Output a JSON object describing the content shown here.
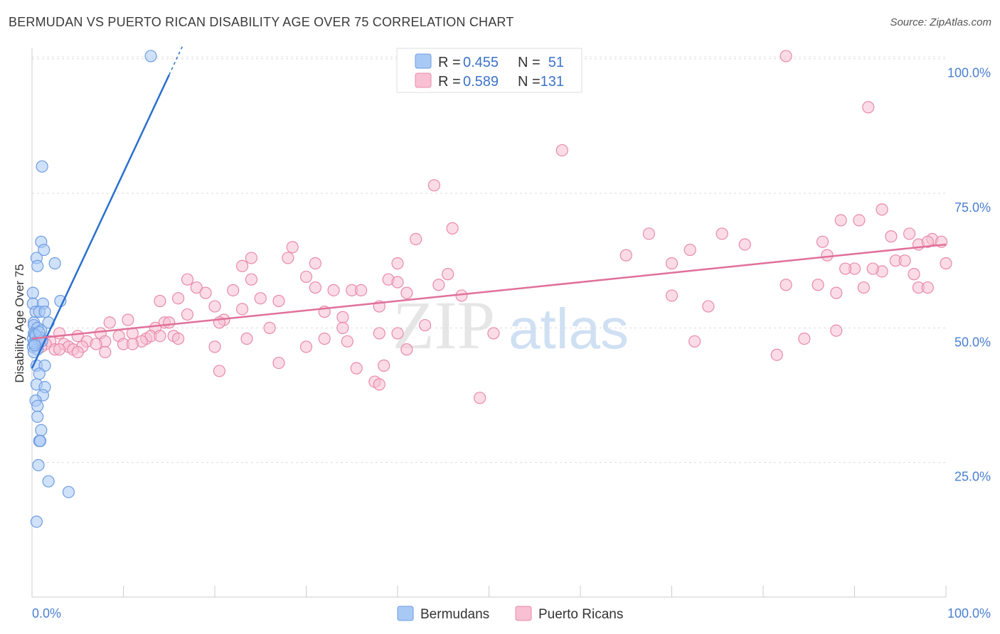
{
  "title": "BERMUDAN VS PUERTO RICAN DISABILITY AGE OVER 75 CORRELATION CHART",
  "source": "Source: ZipAtlas.com",
  "watermark": {
    "zip": "ZIP",
    "atlas": "atlas"
  },
  "legend": {
    "rows": [
      {
        "r_label": "R =",
        "r_value": "0.455",
        "n_label": "N =",
        "n_value": "51",
        "color": "#a9c9f5",
        "stroke": "#6d9de0"
      },
      {
        "r_label": "R =",
        "r_value": "0.589",
        "n_label": "N =",
        "n_value": "131",
        "color": "#f8c0d2",
        "stroke": "#e88aa8"
      }
    ]
  },
  "chart_data": {
    "type": "scatter",
    "title": "BERMUDAN VS PUERTO RICAN DISABILITY AGE OVER 75 CORRELATION CHART",
    "xlabel": "",
    "ylabel": "Disability Age Over 75",
    "xlim": [
      0,
      100
    ],
    "ylim": [
      0,
      103
    ],
    "x_tick_labels": [
      "0.0%",
      "100.0%"
    ],
    "y_ticks": [
      25,
      50,
      75,
      100
    ],
    "y_tick_labels": [
      "25.0%",
      "50.0%",
      "75.0%",
      "100.0%"
    ],
    "grid": true,
    "series": [
      {
        "name": "Bermudans",
        "color": "#a9c9f5",
        "stroke": "#6d9de0",
        "line_color": "#2a6fce",
        "trend": {
          "x0": 0,
          "y0": 42.5,
          "x1": 15.0,
          "y1": 97.0,
          "dash_to_x": 16.5,
          "dash_to_y": 102.5
        },
        "points": [
          [
            13,
            100.5
          ],
          [
            1.1,
            80
          ],
          [
            1.0,
            66
          ],
          [
            1.3,
            64.5
          ],
          [
            0.5,
            63
          ],
          [
            0.6,
            61.5
          ],
          [
            2.5,
            62
          ],
          [
            0.1,
            56.5
          ],
          [
            0.1,
            54.5
          ],
          [
            1.2,
            54.5
          ],
          [
            3.1,
            55
          ],
          [
            0.4,
            53
          ],
          [
            0.8,
            53
          ],
          [
            1.4,
            53
          ],
          [
            0.2,
            51
          ],
          [
            1.8,
            51
          ],
          [
            0.2,
            50.5
          ],
          [
            0.6,
            50
          ],
          [
            1.0,
            49.5
          ],
          [
            0.2,
            49
          ],
          [
            0.5,
            48.5
          ],
          [
            0.1,
            48
          ],
          [
            0.4,
            47.5
          ],
          [
            0.3,
            47
          ],
          [
            0.1,
            46.5
          ],
          [
            0.6,
            46
          ],
          [
            0.2,
            45.5
          ],
          [
            0.5,
            43
          ],
          [
            1.4,
            43
          ],
          [
            0.8,
            41.5
          ],
          [
            0.5,
            39.5
          ],
          [
            1.4,
            39
          ],
          [
            1.2,
            37.5
          ],
          [
            0.4,
            36.5
          ],
          [
            0.6,
            35.5
          ],
          [
            0.6,
            33.5
          ],
          [
            1.0,
            31
          ],
          [
            0.8,
            29
          ],
          [
            0.9,
            29
          ],
          [
            0.7,
            24.5
          ],
          [
            1.8,
            21.5
          ],
          [
            4.0,
            19.5
          ],
          [
            0.5,
            14
          ],
          [
            0.3,
            48.8
          ],
          [
            0.7,
            47.8
          ],
          [
            0.9,
            48.2
          ],
          [
            0.2,
            47.2
          ],
          [
            0.4,
            48.6
          ],
          [
            1.1,
            47.6
          ],
          [
            0.3,
            46.8
          ],
          [
            0.8,
            49.2
          ]
        ]
      },
      {
        "name": "Puerto Ricans",
        "color": "#f8c0d2",
        "stroke": "#e88aa8",
        "line_color": "#e0709a",
        "trend": {
          "x0": 0,
          "y0": 48.0,
          "x1": 100,
          "y1": 65.5
        },
        "points": [
          [
            82.5,
            100.5
          ],
          [
            91.5,
            91
          ],
          [
            58,
            83
          ],
          [
            44,
            76.5
          ],
          [
            93,
            72
          ],
          [
            88.5,
            70
          ],
          [
            90.5,
            70
          ],
          [
            46,
            68.5
          ],
          [
            67.5,
            67.5
          ],
          [
            75.5,
            67.5
          ],
          [
            94,
            67
          ],
          [
            96,
            67.5
          ],
          [
            98.5,
            66.5
          ],
          [
            99.5,
            66
          ],
          [
            42,
            66.5
          ],
          [
            28.5,
            65
          ],
          [
            72,
            64.5
          ],
          [
            78,
            65.5
          ],
          [
            86.5,
            66
          ],
          [
            97,
            65.5
          ],
          [
            98,
            66
          ],
          [
            65,
            63.5
          ],
          [
            87,
            63.5
          ],
          [
            94.5,
            62.5
          ],
          [
            95.5,
            62.5
          ],
          [
            70,
            62
          ],
          [
            28,
            63
          ],
          [
            24,
            63
          ],
          [
            40,
            62
          ],
          [
            31,
            62
          ],
          [
            23,
            61.5
          ],
          [
            90,
            61
          ],
          [
            93,
            60.5
          ],
          [
            92,
            61
          ],
          [
            89,
            61
          ],
          [
            100,
            62
          ],
          [
            96.5,
            60
          ],
          [
            45.5,
            60
          ],
          [
            30,
            59.5
          ],
          [
            24,
            59
          ],
          [
            17,
            59
          ],
          [
            39,
            59
          ],
          [
            40,
            58.5
          ],
          [
            44.5,
            58
          ],
          [
            18,
            57.5
          ],
          [
            82.5,
            58
          ],
          [
            86,
            58
          ],
          [
            91,
            57.5
          ],
          [
            97,
            57.5
          ],
          [
            98,
            57.5
          ],
          [
            22,
            57
          ],
          [
            33,
            57
          ],
          [
            35,
            57
          ],
          [
            36,
            57
          ],
          [
            31,
            57.5
          ],
          [
            41,
            56.5
          ],
          [
            19,
            56.5
          ],
          [
            16,
            55.5
          ],
          [
            27,
            55
          ],
          [
            47,
            56
          ],
          [
            70,
            56
          ],
          [
            88,
            56.5
          ],
          [
            14,
            55
          ],
          [
            25,
            55.5
          ],
          [
            20,
            54
          ],
          [
            38,
            54
          ],
          [
            74,
            54
          ],
          [
            23,
            53.5
          ],
          [
            32,
            53
          ],
          [
            34,
            52
          ],
          [
            17,
            52.5
          ],
          [
            21,
            51.5
          ],
          [
            20.5,
            51
          ],
          [
            10.5,
            51.5
          ],
          [
            14.5,
            51
          ],
          [
            8.5,
            51
          ],
          [
            15,
            51
          ],
          [
            13.5,
            50
          ],
          [
            26,
            50
          ],
          [
            43,
            50.5
          ],
          [
            34,
            50
          ],
          [
            88,
            49.5
          ],
          [
            3,
            49
          ],
          [
            7.5,
            49
          ],
          [
            11,
            49
          ],
          [
            38,
            49
          ],
          [
            40,
            49
          ],
          [
            50.5,
            49
          ],
          [
            5,
            48.5
          ],
          [
            9.5,
            48.5
          ],
          [
            12.5,
            48
          ],
          [
            13,
            48.5
          ],
          [
            14,
            48.5
          ],
          [
            15.5,
            48.5
          ],
          [
            1,
            48
          ],
          [
            2,
            47.5
          ],
          [
            6,
            47.5
          ],
          [
            8,
            47.5
          ],
          [
            12,
            47.5
          ],
          [
            0.5,
            47
          ],
          [
            1.5,
            47
          ],
          [
            3.5,
            47
          ],
          [
            7,
            47
          ],
          [
            10,
            47
          ],
          [
            11,
            47
          ],
          [
            4,
            46.5
          ],
          [
            5.5,
            46.5
          ],
          [
            2.5,
            46
          ],
          [
            4.5,
            46
          ],
          [
            16,
            48
          ],
          [
            23.5,
            48
          ],
          [
            32,
            48
          ],
          [
            34.5,
            47.5
          ],
          [
            72.5,
            47.5
          ],
          [
            84.5,
            48
          ],
          [
            20,
            46.5
          ],
          [
            30,
            46.5
          ],
          [
            41,
            46
          ],
          [
            8,
            45.5
          ],
          [
            1,
            46.5
          ],
          [
            3,
            46
          ],
          [
            5,
            45.5
          ],
          [
            81.5,
            45
          ],
          [
            27,
            43.5
          ],
          [
            35.5,
            42.5
          ],
          [
            38.5,
            43
          ],
          [
            20.5,
            42
          ],
          [
            37.5,
            40
          ],
          [
            38,
            39.5
          ],
          [
            49,
            37
          ]
        ]
      }
    ]
  },
  "bottom_legend": [
    {
      "label": "Bermudans",
      "color": "#a9c9f5",
      "stroke": "#6d9de0"
    },
    {
      "label": "Puerto Ricans",
      "color": "#f8c0d2",
      "stroke": "#e88aa8"
    }
  ]
}
